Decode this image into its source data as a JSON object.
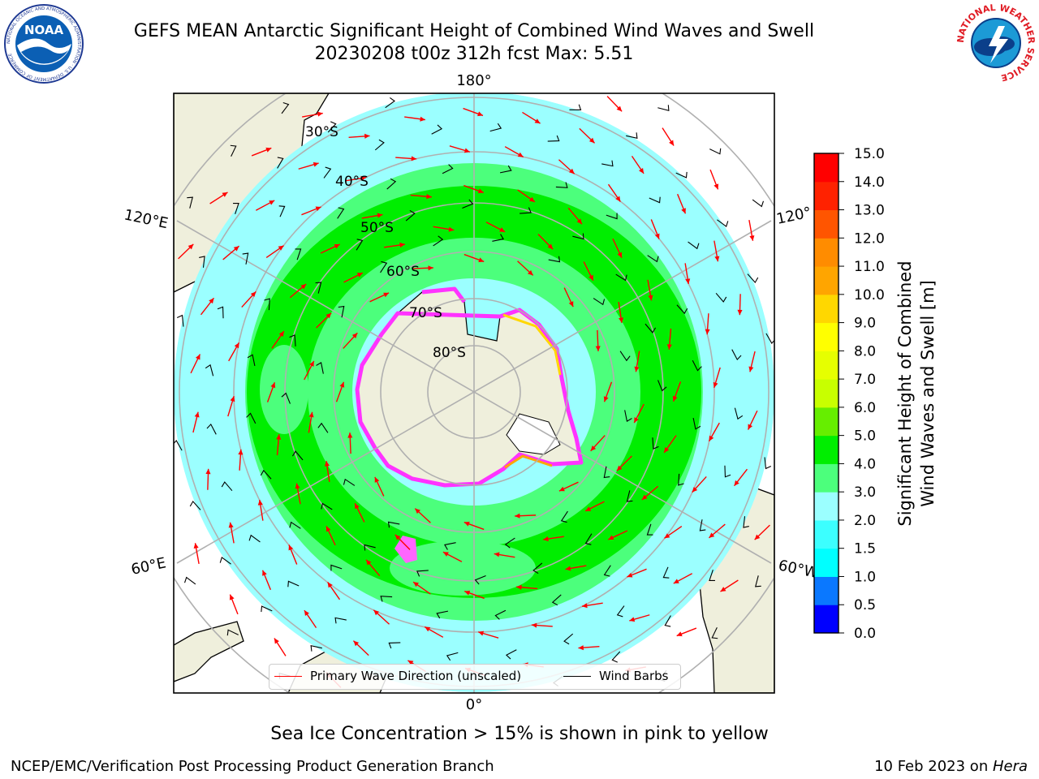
{
  "title_line1": "GEFS MEAN Antarctic Significant Height of Combined Wind Waves and Swell",
  "title_line2": "20230208 t00z 312h fcst   Max: 5.51",
  "noaa_logo_text": "NOAA",
  "noaa_ring_text": "NATIONAL OCEANIC AND ATMOSPHERIC ADMINISTRATION · U.S. DEPARTMENT OF COMMERCE",
  "nws_ring_text": "NATIONAL WEATHER SERVICE",
  "map": {
    "lon_labels": [
      "180°",
      "120°E",
      "120°",
      "60°E",
      "60°W",
      "0°"
    ],
    "lat_labels": [
      "30°S",
      "40°S",
      "50°S",
      "60°S",
      "70°S",
      "80°S"
    ]
  },
  "colorbar": {
    "title_line1": "Significant Height of Combined",
    "title_line2": "Wind Waves and Swell [m]",
    "ticks": [
      "0.0",
      "0.5",
      "1.0",
      "1.5",
      "2.0",
      "3.0",
      "4.0",
      "5.0",
      "6.0",
      "7.0",
      "8.0",
      "9.0",
      "10.0",
      "11.0",
      "12.0",
      "13.0",
      "14.0",
      "15.0"
    ],
    "colors": [
      "#0000ff",
      "#0a78ff",
      "#00ffff",
      "#3cffff",
      "#9bffff",
      "#4cff7c",
      "#00ee00",
      "#66ee00",
      "#c8ff00",
      "#e6ff00",
      "#ffff00",
      "#ffd700",
      "#ffa500",
      "#ff8c00",
      "#ff5500",
      "#ff2200",
      "#ff0000"
    ]
  },
  "legend": {
    "wave_label": "Primary Wave Direction (unscaled)",
    "wind_label": "Wind Barbs",
    "wave_color": "#ff0000",
    "wind_color": "#000000"
  },
  "subcaption": "Sea Ice Concentration > 15% is shown in pink to yellow",
  "footer_left": "NCEP/EMC/Verification Post Processing Product Generation Branch",
  "footer_right_date": "10 Feb 2023 on ",
  "footer_right_host": "Hera"
}
